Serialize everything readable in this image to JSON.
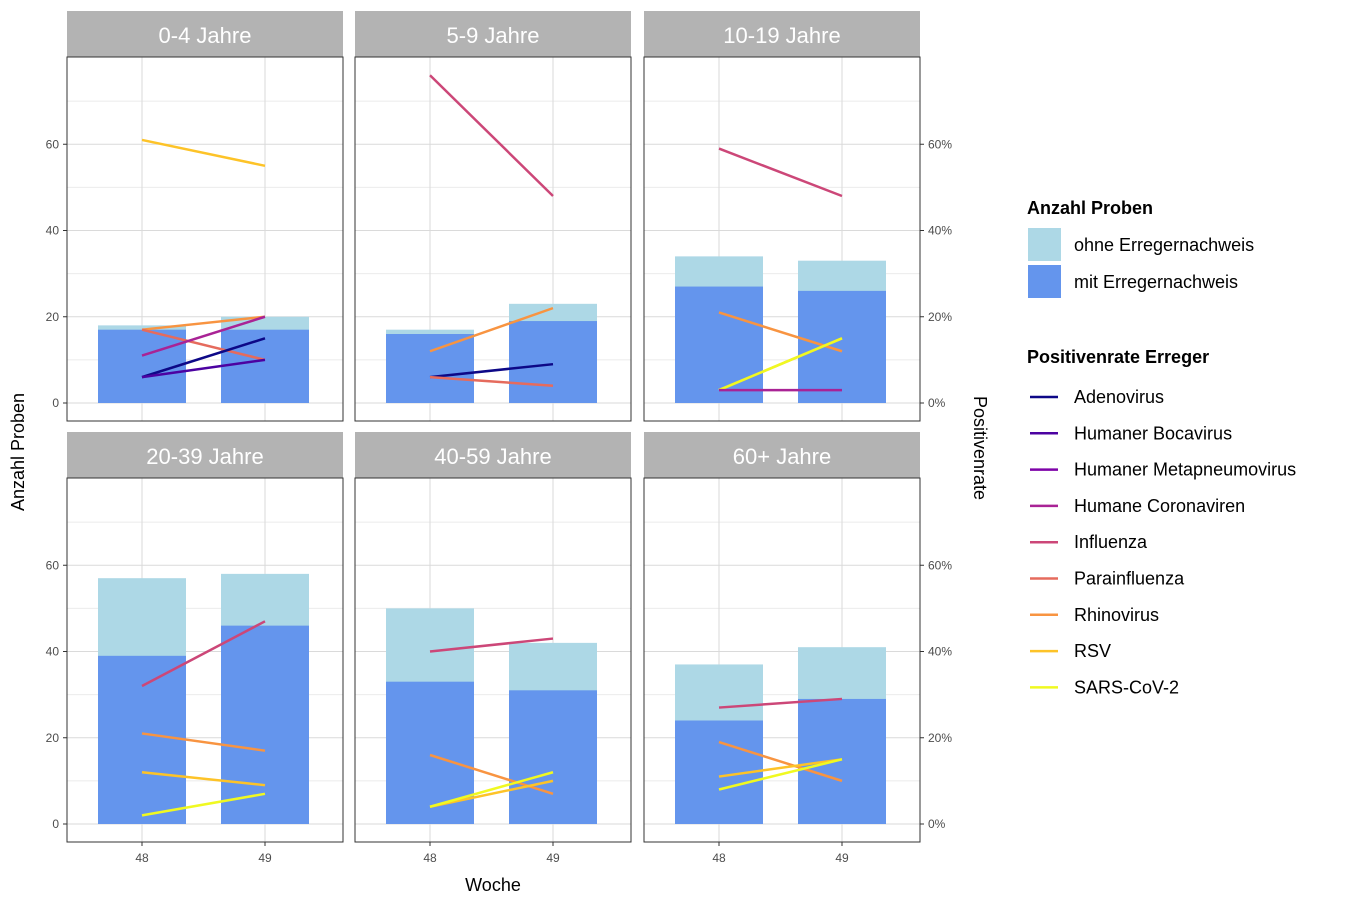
{
  "chart_data": {
    "type": "bar+line",
    "x_label": "Woche",
    "y_left_label": "Anzahl Proben",
    "y_right_label": "Positivenrate",
    "x_ticks": [
      "48",
      "49"
    ],
    "y_left_ticks": [
      "0",
      "20",
      "40",
      "60"
    ],
    "y_right_ticks": [
      "0%",
      "20%",
      "40%",
      "60%"
    ],
    "y_left_range": [
      0,
      80
    ],
    "y_right_range": [
      0,
      0.8
    ],
    "grid": true,
    "legend_bars": {
      "title": "Anzahl Proben",
      "items": [
        {
          "label": "ohne Erregernachweis",
          "color": "#ADD8E6"
        },
        {
          "label": "mit Erregernachweis",
          "color": "#6495ED"
        }
      ]
    },
    "legend_lines": {
      "title": "Positivenrate Erreger",
      "items": [
        {
          "label": "Adenovirus",
          "color": "#0D0887"
        },
        {
          "label": "Humaner Bocavirus",
          "color": "#4C02A1"
        },
        {
          "label": "Humaner Metapneumovirus",
          "color": "#7E03A8"
        },
        {
          "label": "Humane Coronaviren",
          "color": "#A92395"
        },
        {
          "label": "Influenza",
          "color": "#CC4778"
        },
        {
          "label": "Parainfluenza",
          "color": "#E56B5D"
        },
        {
          "label": "Rhinovirus",
          "color": "#F89441"
        },
        {
          "label": "RSV",
          "color": "#FDC328"
        },
        {
          "label": "SARS-CoV-2",
          "color": "#F0F921"
        }
      ]
    },
    "panels": [
      {
        "title": "0-4 Jahre",
        "total": [
          18,
          20
        ],
        "positive": [
          17,
          17
        ],
        "lines": [
          {
            "name": "RSV",
            "values": [
              0.61,
              0.55
            ]
          },
          {
            "name": "Rhinovirus",
            "values": [
              0.17,
              0.2
            ]
          },
          {
            "name": "Parainfluenza",
            "values": [
              0.17,
              0.1
            ]
          },
          {
            "name": "Humane Coronaviren",
            "values": [
              0.11,
              0.2
            ]
          },
          {
            "name": "Adenovirus",
            "values": [
              0.06,
              0.15
            ]
          },
          {
            "name": "Humaner Bocavirus",
            "values": [
              0.06,
              0.1
            ]
          }
        ]
      },
      {
        "title": "5-9 Jahre",
        "total": [
          17,
          23
        ],
        "positive": [
          16,
          19
        ],
        "lines": [
          {
            "name": "Influenza",
            "values": [
              0.76,
              0.48
            ]
          },
          {
            "name": "Rhinovirus",
            "values": [
              0.12,
              0.22
            ]
          },
          {
            "name": "Adenovirus",
            "values": [
              0.06,
              0.09
            ]
          },
          {
            "name": "Parainfluenza",
            "values": [
              0.06,
              0.04
            ]
          }
        ]
      },
      {
        "title": "10-19 Jahre",
        "total": [
          34,
          33
        ],
        "positive": [
          27,
          26
        ],
        "lines": [
          {
            "name": "Influenza",
            "values": [
              0.59,
              0.48
            ]
          },
          {
            "name": "Rhinovirus",
            "values": [
              0.21,
              0.12
            ]
          },
          {
            "name": "RSV",
            "values": [
              0.03,
              0.15
            ]
          },
          {
            "name": "SARS-CoV-2",
            "values": [
              0.03,
              0.15
            ]
          },
          {
            "name": "Humane Coronaviren",
            "values": [
              0.03,
              0.03
            ]
          }
        ]
      },
      {
        "title": "20-39 Jahre",
        "total": [
          57,
          58
        ],
        "positive": [
          39,
          46
        ],
        "lines": [
          {
            "name": "Influenza",
            "values": [
              0.32,
              0.47
            ]
          },
          {
            "name": "Rhinovirus",
            "values": [
              0.21,
              0.17
            ]
          },
          {
            "name": "RSV",
            "values": [
              0.12,
              0.09
            ]
          },
          {
            "name": "SARS-CoV-2",
            "values": [
              0.02,
              0.07
            ]
          }
        ]
      },
      {
        "title": "40-59 Jahre",
        "total": [
          50,
          42
        ],
        "positive": [
          33,
          31
        ],
        "lines": [
          {
            "name": "Influenza",
            "values": [
              0.4,
              0.43
            ]
          },
          {
            "name": "Rhinovirus",
            "values": [
              0.16,
              0.07
            ]
          },
          {
            "name": "RSV",
            "values": [
              0.04,
              0.1
            ]
          },
          {
            "name": "SARS-CoV-2",
            "values": [
              0.04,
              0.12
            ]
          }
        ]
      },
      {
        "title": "60+ Jahre",
        "total": [
          37,
          41
        ],
        "positive": [
          24,
          29
        ],
        "lines": [
          {
            "name": "Influenza",
            "values": [
              0.27,
              0.29
            ]
          },
          {
            "name": "Rhinovirus",
            "values": [
              0.19,
              0.1
            ]
          },
          {
            "name": "RSV",
            "values": [
              0.11,
              0.15
            ]
          },
          {
            "name": "SARS-CoV-2",
            "values": [
              0.08,
              0.15
            ]
          }
        ]
      }
    ]
  }
}
